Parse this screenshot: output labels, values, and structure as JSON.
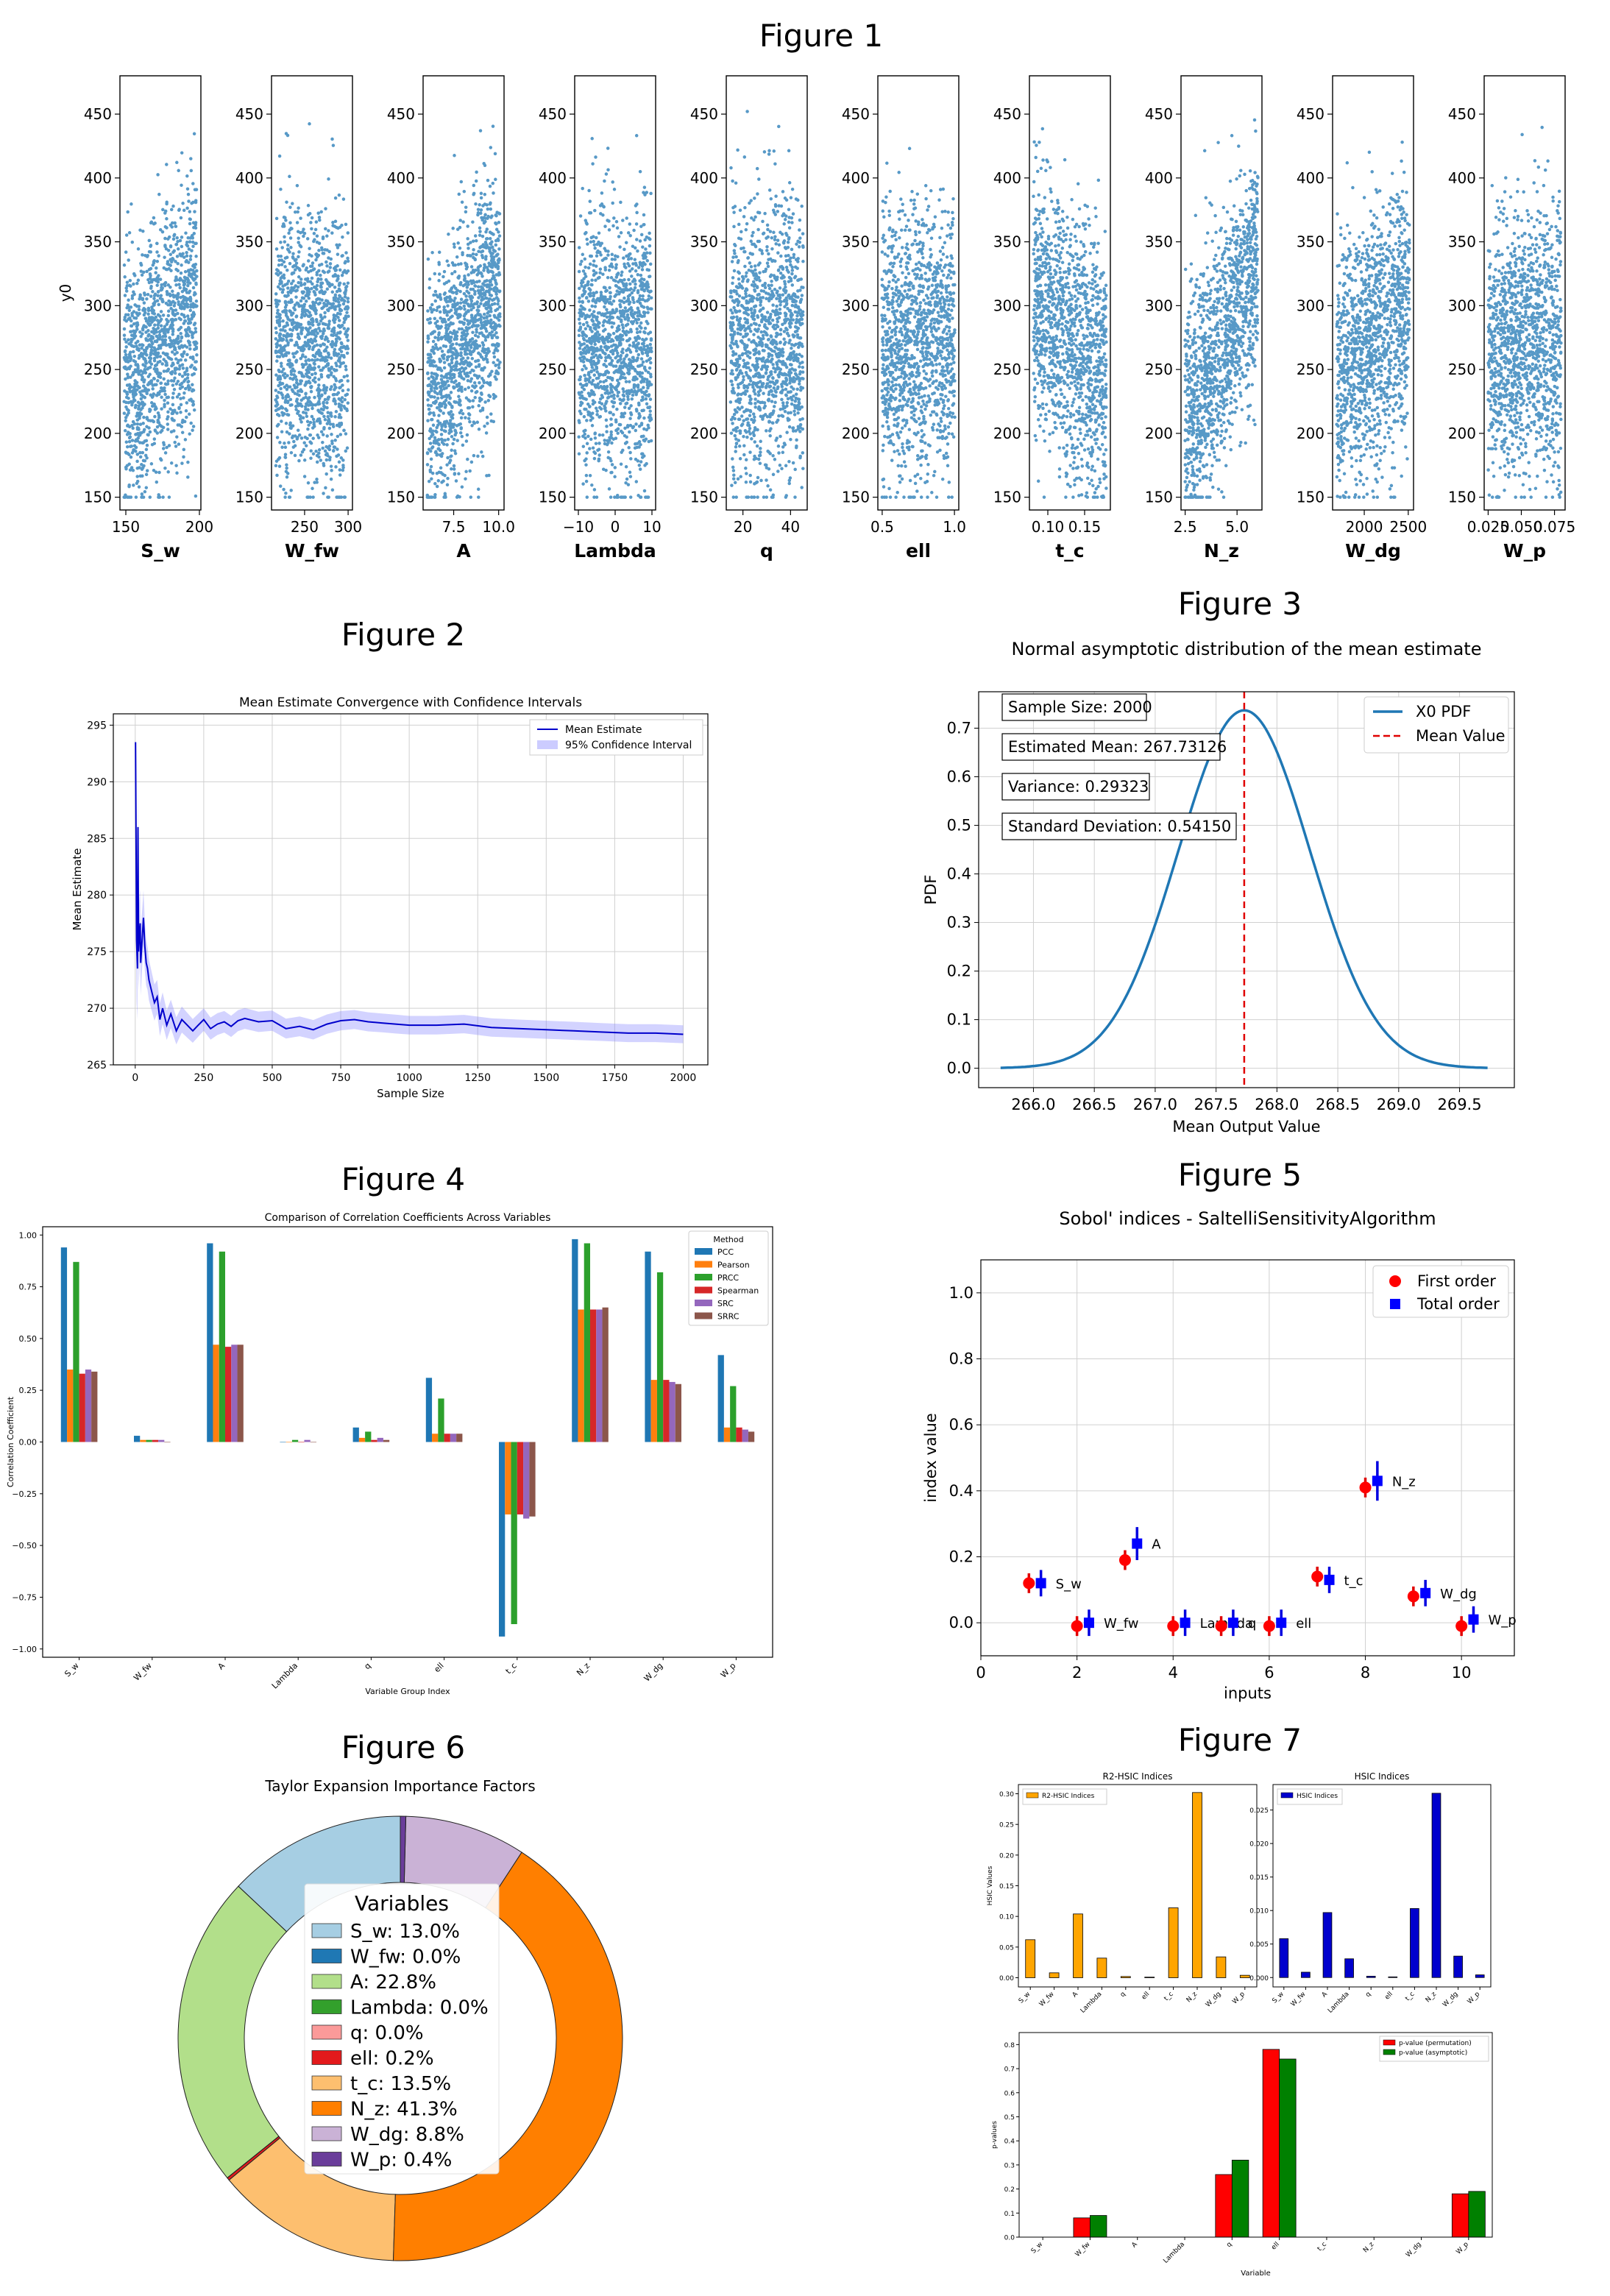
{
  "figure_titles": [
    "Figure 1",
    "Figure 2",
    "Figure 3",
    "Figure 4",
    "Figure 5",
    "Figure 6",
    "Figure 7"
  ],
  "chart_data": [
    {
      "figure": "Figure 1",
      "type": "scatter",
      "ylabel": "y0",
      "y_ticks": [
        150,
        200,
        250,
        300,
        350,
        400,
        450
      ],
      "ylim": [
        140,
        480
      ],
      "panels": [
        {
          "xlabel": "S_w",
          "xlim": [
            146,
            201
          ],
          "x_ticks": [
            150,
            200
          ],
          "x_tick_labels": [
            "150",
            "200"
          ],
          "correlation": 0.35
        },
        {
          "xlabel": "W_fw",
          "xlim": [
            212,
            305
          ],
          "x_ticks": [
            250,
            300
          ],
          "x_tick_labels": [
            "250",
            "300"
          ],
          "correlation": 0.0
        },
        {
          "xlabel": "A",
          "xlim": [
            5.8,
            10.3
          ],
          "x_ticks": [
            7.5,
            10.0
          ],
          "x_tick_labels": [
            "7.5",
            "10.0"
          ],
          "correlation": 0.47
        },
        {
          "xlabel": "Lambda",
          "xlim": [
            -11,
            11
          ],
          "x_ticks": [
            -10,
            0,
            10
          ],
          "x_tick_labels": [
            "−10",
            "0",
            "10"
          ],
          "correlation": 0.0
        },
        {
          "xlabel": "q",
          "xlim": [
            13,
            47
          ],
          "x_ticks": [
            20,
            40
          ],
          "x_tick_labels": [
            "20",
            "40"
          ],
          "correlation": 0.05
        },
        {
          "xlabel": "ell",
          "xlim": [
            0.47,
            1.03
          ],
          "x_ticks": [
            0.5,
            1.0
          ],
          "x_tick_labels": [
            "0.5",
            "1.0"
          ],
          "correlation": 0.03
        },
        {
          "xlabel": "t_c",
          "xlim": [
            0.075,
            0.185
          ],
          "x_ticks": [
            0.1,
            0.15
          ],
          "x_tick_labels": [
            "0.10",
            "0.15"
          ],
          "correlation": -0.37
        },
        {
          "xlabel": "N_z",
          "xlim": [
            2.3,
            6.2
          ],
          "x_ticks": [
            2.5,
            5.0
          ],
          "x_tick_labels": [
            "2.5",
            "5.0"
          ],
          "correlation": 0.64
        },
        {
          "xlabel": "W_dg",
          "xlim": [
            1640,
            2560
          ],
          "x_ticks": [
            2000,
            2500
          ],
          "x_tick_labels": [
            "2000",
            "2500"
          ],
          "correlation": 0.3
        },
        {
          "xlabel": "W_p",
          "xlim": [
            0.022,
            0.083
          ],
          "x_ticks": [
            0.025,
            0.05,
            0.075
          ],
          "x_tick_labels": [
            "0.025",
            "0.050",
            "0.075"
          ],
          "correlation": 0.05
        }
      ]
    },
    {
      "figure": "Figure 2",
      "type": "line",
      "title": "Mean Estimate Convergence with Confidence Intervals",
      "xlabel": "Sample Size",
      "ylabel": "Mean Estimate",
      "xlim": [
        -80,
        2090
      ],
      "ylim": [
        265,
        296
      ],
      "x_ticks": [
        0,
        250,
        500,
        750,
        1000,
        1250,
        1500,
        1750,
        2000
      ],
      "y_ticks": [
        265,
        270,
        275,
        280,
        285,
        290,
        295
      ],
      "legend": [
        "Mean Estimate",
        "95% Confidence Interval"
      ],
      "legend_position": "top-right",
      "x": [
        1,
        3,
        5,
        8,
        10,
        12,
        15,
        18,
        20,
        25,
        30,
        35,
        40,
        45,
        50,
        60,
        70,
        80,
        90,
        100,
        115,
        130,
        150,
        170,
        190,
        210,
        230,
        250,
        275,
        300,
        325,
        350,
        375,
        400,
        450,
        500,
        550,
        600,
        650,
        700,
        750,
        800,
        850,
        900,
        950,
        1000,
        1100,
        1200,
        1300,
        1400,
        1500,
        1600,
        1700,
        1800,
        1900,
        2000
      ],
      "mean": [
        293.5,
        285.0,
        276.0,
        273.5,
        286.0,
        275.0,
        276.5,
        277.5,
        274.0,
        276.0,
        278.0,
        275.5,
        274.0,
        273.5,
        272.5,
        271.5,
        270.5,
        271.0,
        269.0,
        270.0,
        268.5,
        269.5,
        268.0,
        269.0,
        268.5,
        268.0,
        268.5,
        269.0,
        268.2,
        268.6,
        268.8,
        268.4,
        268.9,
        269.1,
        268.8,
        268.9,
        268.2,
        268.4,
        268.1,
        268.6,
        268.9,
        269.0,
        268.8,
        268.7,
        268.6,
        268.5,
        268.5,
        268.6,
        268.3,
        268.2,
        268.1,
        268.0,
        267.9,
        267.8,
        267.8,
        267.7
      ],
      "ci_half_width": [
        0,
        8,
        5.5,
        4.5,
        4,
        3.5,
        3.2,
        3,
        2.9,
        2.6,
        2.4,
        2.2,
        2.0,
        1.9,
        1.8,
        1.7,
        1.6,
        1.5,
        1.45,
        1.4,
        1.3,
        1.25,
        1.2,
        1.15,
        1.1,
        1.05,
        1.02,
        1.0,
        0.98,
        0.96,
        0.95,
        0.94,
        0.93,
        0.92,
        0.9,
        0.89,
        0.88,
        0.87,
        0.86,
        0.85,
        0.85,
        0.84,
        0.84,
        0.83,
        0.83,
        0.82,
        0.82,
        0.81,
        0.81,
        0.8,
        0.8,
        0.8,
        0.79,
        0.79,
        0.79,
        0.79
      ]
    },
    {
      "figure": "Figure 3",
      "type": "line",
      "title": "Normal asymptotic distribution of the mean estimate",
      "xlabel": "Mean Output Value",
      "ylabel": "PDF",
      "xlim": [
        265.55,
        269.95
      ],
      "ylim": [
        -0.04,
        0.775
      ],
      "x_ticks": [
        266.0,
        266.5,
        267.0,
        267.5,
        268.0,
        268.5,
        269.0,
        269.5
      ],
      "y_ticks": [
        0.0,
        0.1,
        0.2,
        0.3,
        0.4,
        0.5,
        0.6,
        0.7
      ],
      "distribution": {
        "mean": 267.73126,
        "std": 0.5415,
        "x_from": 265.73,
        "x_to": 269.73
      },
      "mean_line": 267.73126,
      "legend": [
        "X0 PDF",
        "Mean Value"
      ],
      "legend_position": "top-right",
      "annotations": [
        "Sample Size: 2000",
        "Estimated Mean: 267.73126",
        "Variance: 0.29323",
        "Standard Deviation: 0.54150"
      ]
    },
    {
      "figure": "Figure 4",
      "type": "bar",
      "title": "Comparison of Correlation Coefficients Across Variables",
      "xlabel": "Variable Group Index",
      "ylabel": "Correlation Coefficient",
      "ylim": [
        -1.04,
        1.04
      ],
      "y_ticks": [
        -1.0,
        -0.75,
        -0.5,
        -0.25,
        0.0,
        0.25,
        0.5,
        0.75,
        1.0
      ],
      "categories": [
        "S_w",
        "W_fw",
        "A",
        "Lambda",
        "q",
        "ell",
        "t_c",
        "N_z",
        "W_dg",
        "W_p"
      ],
      "legend_title": "Method",
      "legend_position": "top-right",
      "series": [
        {
          "name": "PCC",
          "color": "#1f77b4",
          "values": [
            0.94,
            0.03,
            0.96,
            0.0,
            0.07,
            0.31,
            -0.94,
            0.98,
            0.92,
            0.42
          ]
        },
        {
          "name": "Pearson",
          "color": "#ff7f0e",
          "values": [
            0.35,
            0.01,
            0.47,
            0.0,
            0.02,
            0.04,
            -0.35,
            0.64,
            0.3,
            0.07
          ]
        },
        {
          "name": "PRCC",
          "color": "#2ca02c",
          "values": [
            0.87,
            0.01,
            0.92,
            0.01,
            0.05,
            0.21,
            -0.88,
            0.96,
            0.82,
            0.27
          ]
        },
        {
          "name": "Spearman",
          "color": "#d62728",
          "values": [
            0.33,
            0.01,
            0.46,
            0.0,
            0.01,
            0.04,
            -0.35,
            0.64,
            0.3,
            0.07
          ]
        },
        {
          "name": "SRC",
          "color": "#9467bd",
          "values": [
            0.35,
            0.01,
            0.47,
            0.01,
            0.02,
            0.04,
            -0.37,
            0.64,
            0.29,
            0.06
          ]
        },
        {
          "name": "SRRC",
          "color": "#8c564b",
          "values": [
            0.34,
            0.0,
            0.47,
            0.0,
            0.01,
            0.04,
            -0.36,
            0.65,
            0.28,
            0.05
          ]
        }
      ]
    },
    {
      "figure": "Figure 5",
      "type": "scatter",
      "title": "Sobol' indices - SaltelliSensitivityAlgorithm",
      "xlabel": "inputs",
      "ylabel": "index value",
      "xlim": [
        0,
        11.1
      ],
      "ylim": [
        -0.1,
        1.1
      ],
      "x_ticks": [
        0,
        2,
        4,
        6,
        8,
        10
      ],
      "y_ticks": [
        0.0,
        0.2,
        0.4,
        0.6,
        0.8,
        1.0
      ],
      "legend": [
        "First order",
        "Total order"
      ],
      "legend_position": "top-right",
      "labels": [
        "S_w",
        "W_fw",
        "A",
        "Lambda",
        "q",
        "ell",
        "t_c",
        "N_z",
        "W_dg",
        "W_p"
      ],
      "first_order": [
        0.12,
        -0.01,
        0.19,
        -0.01,
        -0.01,
        -0.01,
        0.14,
        0.41,
        0.08,
        -0.01
      ],
      "first_order_err": [
        0.03,
        0.03,
        0.03,
        0.03,
        0.03,
        0.03,
        0.03,
        0.03,
        0.03,
        0.03
      ],
      "total_order": [
        0.12,
        0.0,
        0.24,
        0.0,
        0.0,
        0.0,
        0.13,
        0.43,
        0.09,
        0.01
      ],
      "total_order_err": [
        0.04,
        0.04,
        0.05,
        0.04,
        0.04,
        0.04,
        0.04,
        0.06,
        0.04,
        0.04
      ]
    },
    {
      "figure": "Figure 6",
      "type": "pie",
      "title": "Taylor Expansion Importance Factors",
      "legend_title": "Variables",
      "labels": [
        "S_w: 13.0%",
        "W_fw: 0.0%",
        "A: 22.8%",
        "Lambda: 0.0%",
        "q: 0.0%",
        "ell: 0.2%",
        "t_c: 13.5%",
        "N_z: 41.3%",
        "W_dg: 8.8%",
        "W_p: 0.4%"
      ],
      "values": [
        13.0,
        0.0,
        22.8,
        0.0,
        0.0,
        0.2,
        13.5,
        41.3,
        8.8,
        0.4
      ],
      "colors": [
        "#a6cee3",
        "#1f78b4",
        "#b2df8a",
        "#33a02c",
        "#fb9a99",
        "#e31a1c",
        "#fdbf6f",
        "#ff7f00",
        "#cab2d6",
        "#6a3d9a"
      ]
    },
    {
      "figure": "Figure 7",
      "type": "bar",
      "title": "R2-HSIC Indices",
      "ylabel": "HSIC Values",
      "ylim": [
        -0.015,
        0.315
      ],
      "y_ticks": [
        0.0,
        0.05,
        0.1,
        0.15,
        0.2,
        0.25,
        0.3
      ],
      "y_tick_labels": [
        "0.00",
        "0.05",
        "0.10",
        "0.15",
        "0.20",
        "0.25",
        "0.30"
      ],
      "categories": [
        "S_w",
        "W_fw",
        "A",
        "Lambda",
        "q",
        "ell",
        "t_c",
        "N_z",
        "W_dg",
        "W_p"
      ],
      "series": [
        {
          "name": "R2-HSIC Indices",
          "color": "#ffa500",
          "values": [
            0.062,
            0.008,
            0.104,
            0.032,
            0.002,
            0.001,
            0.114,
            0.302,
            0.034,
            0.004
          ]
        }
      ],
      "legend_position": "top-left"
    },
    {
      "figure": "Figure 7",
      "type": "bar",
      "title": "HSIC Indices",
      "ylim": [
        -0.0014,
        0.0288
      ],
      "y_ticks": [
        0.0,
        0.005,
        0.01,
        0.015,
        0.02,
        0.025
      ],
      "y_tick_labels": [
        "0.000",
        "0.005",
        "0.010",
        "0.015",
        "0.020",
        "0.025"
      ],
      "categories": [
        "S_w",
        "W_fw",
        "A",
        "Lambda",
        "q",
        "ell",
        "t_c",
        "N_z",
        "W_dg",
        "W_p"
      ],
      "series": [
        {
          "name": "HSIC Indices",
          "color": "#0000cd",
          "values": [
            0.0058,
            0.0008,
            0.0097,
            0.0028,
            0.0002,
            0.0001,
            0.0103,
            0.0275,
            0.0032,
            0.0004
          ]
        }
      ],
      "legend_position": "top-left"
    },
    {
      "figure": "Figure 7",
      "type": "bar",
      "xlabel": "Variable",
      "ylabel": "p-values",
      "ylim": [
        0,
        0.85
      ],
      "y_ticks": [
        0.0,
        0.1,
        0.2,
        0.3,
        0.4,
        0.5,
        0.6,
        0.7,
        0.8
      ],
      "categories": [
        "S_w",
        "W_fw",
        "A",
        "Lambda",
        "q",
        "ell",
        "t_c",
        "N_z",
        "W_dg",
        "W_p"
      ],
      "series": [
        {
          "name": "p-value (permutation)",
          "color": "#ff0000",
          "values": [
            0.0,
            0.08,
            0.0,
            0.0,
            0.26,
            0.78,
            0.0,
            0.0,
            0.0,
            0.18
          ]
        },
        {
          "name": "p-value (asymptotic)",
          "color": "#008000",
          "values": [
            0.0,
            0.09,
            0.0,
            0.0,
            0.32,
            0.74,
            0.0,
            0.0,
            0.0,
            0.19
          ]
        }
      ],
      "legend_position": "top-right"
    }
  ]
}
